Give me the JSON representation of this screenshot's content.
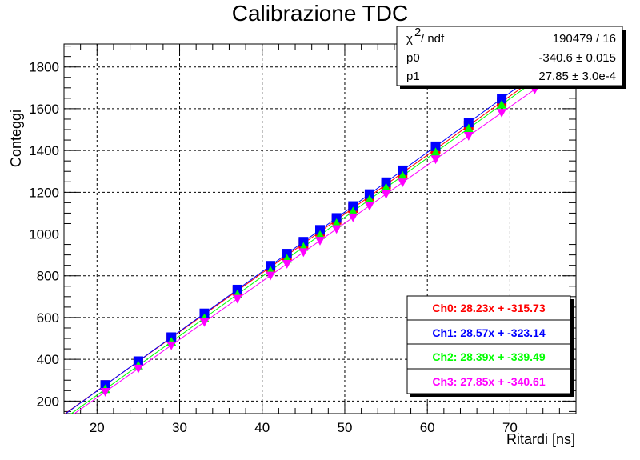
{
  "chart_data": {
    "type": "scatter",
    "title": "Calibrazione TDC",
    "xlabel": "Ritardi [ns]",
    "ylabel": "Conteggi",
    "xlim": [
      16,
      78
    ],
    "ylim": [
      140,
      1910
    ],
    "x_ticks": [
      20,
      30,
      40,
      50,
      60,
      70
    ],
    "y_ticks": [
      200,
      400,
      600,
      800,
      1000,
      1200,
      1400,
      1600,
      1800
    ],
    "x_tick_labels": [
      "20",
      "30",
      "40",
      "50",
      "60",
      "70"
    ],
    "y_tick_labels": [
      "200",
      "400",
      "600",
      "800",
      "1000",
      "1200",
      "1400",
      "1600",
      "1800"
    ],
    "grid": true,
    "x": [
      21,
      25,
      29,
      33,
      37,
      41,
      43,
      45,
      47,
      49,
      51,
      53,
      55,
      57,
      61,
      65,
      69,
      73
    ],
    "series": [
      {
        "name": "Ch0",
        "label": "Ch0: 28.23x + -315.73",
        "color": "#ff0000",
        "marker": "square",
        "slope": 28.23,
        "intercept": -315.73,
        "values": [
          277,
          390,
          503,
          616,
          728,
          842,
          898,
          954,
          1011,
          1068,
          1124,
          1180,
          1237,
          1293,
          1406,
          1519,
          1632,
          1745
        ]
      },
      {
        "name": "Ch1",
        "label": "Ch1: 28.57x + -323.14",
        "color": "#0000ff",
        "marker": "square",
        "slope": 28.57,
        "intercept": -323.14,
        "values": [
          277,
          391,
          506,
          620,
          734,
          848,
          906,
          963,
          1020,
          1077,
          1134,
          1191,
          1248,
          1305,
          1420,
          1534,
          1648,
          1762
        ]
      },
      {
        "name": "Ch2",
        "label": "Ch2: 28.39x + -339.49",
        "color": "#00ff00",
        "marker": "triangle-up",
        "slope": 28.39,
        "intercept": -339.49,
        "values": [
          257,
          370,
          484,
          597,
          711,
          824,
          881,
          938,
          995,
          1052,
          1108,
          1165,
          1222,
          1279,
          1392,
          1506,
          1619,
          1733
        ]
      },
      {
        "name": "Ch3",
        "label": "Ch3: 27.85x + -340.61",
        "color": "#ff00ff",
        "marker": "triangle-down",
        "slope": 27.85,
        "intercept": -340.61,
        "values": [
          244,
          356,
          467,
          578,
          690,
          801,
          857,
          913,
          968,
          1024,
          1080,
          1135,
          1191,
          1247,
          1358,
          1470,
          1581,
          1692
        ]
      }
    ],
    "stats_box": {
      "chi2_label": "χ",
      "chi2_sup": "2",
      "chi2_suffix": " / ndf",
      "chi2_value": "190479 / 16",
      "p0_label": "p0",
      "p0_value": "-340.6 ± 0.015",
      "p1_label": "p1",
      "p1_value": "27.85 ± 3.0e-4"
    },
    "legend_position": "bottom-right"
  }
}
